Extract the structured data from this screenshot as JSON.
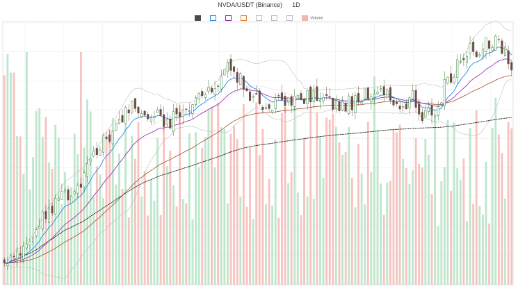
{
  "title": {
    "symbol": "NVDA/USDT (Binance)",
    "interval": "1D"
  },
  "subtitle": "",
  "legend": [
    {
      "key": "price",
      "label": "",
      "color": "#4a4a4a",
      "style": "fill"
    },
    {
      "key": "ema_a",
      "label": "",
      "color": "#1e88e5",
      "style": "box"
    },
    {
      "key": "ema_b",
      "label": "",
      "color": "#8e24aa",
      "style": "box"
    },
    {
      "key": "ema_c",
      "label": "",
      "color": "#e67e22",
      "style": "box"
    },
    {
      "key": "bb_up",
      "label": "",
      "color": "#bdbdbd",
      "style": "box"
    },
    {
      "key": "bb_low",
      "label": "",
      "color": "#bdbdbd",
      "style": "box"
    },
    {
      "key": "bb_mid",
      "label": "",
      "color": "#bdbdbd",
      "style": "box"
    },
    {
      "key": "volume",
      "label": "Volume",
      "color": "#f4b4b0",
      "style": "fill"
    }
  ],
  "chart_data": {
    "type": "line",
    "title": "NVDA/USDT (Binance)  1D",
    "xlabel": "",
    "ylabel": "",
    "n_points": 160,
    "y_range": [
      88,
      190
    ],
    "y_tick_labels": [
      "",
      "",
      "",
      "",
      "",
      "",
      "",
      "",
      "",
      ""
    ],
    "x_tick_labels": [
      "",
      "",
      "",
      "",
      "",
      "",
      "",
      "",
      "",
      "",
      "",
      "",
      ""
    ],
    "grid": true,
    "legend_position": "top-center",
    "colors": {
      "up": "#2e7d32",
      "down": "#6d4c41",
      "ema_fast": "#1e88e5",
      "ema_mid": "#8e24aa",
      "ema_slow": "#a0522d",
      "sma_long": "#000000",
      "band": "#bdbdbd",
      "vol_up": "#bfe6cc",
      "vol_down": "#f6c3bf"
    },
    "price_anchors": [
      [
        0,
        96
      ],
      [
        6,
        101
      ],
      [
        12,
        113
      ],
      [
        18,
        122
      ],
      [
        24,
        128
      ],
      [
        30,
        141
      ],
      [
        36,
        152
      ],
      [
        40,
        157
      ],
      [
        46,
        153
      ],
      [
        52,
        152
      ],
      [
        56,
        156
      ],
      [
        62,
        161
      ],
      [
        66,
        163
      ],
      [
        70,
        175
      ],
      [
        76,
        164
      ],
      [
        82,
        158
      ],
      [
        86,
        158
      ],
      [
        92,
        162
      ],
      [
        100,
        160
      ],
      [
        106,
        157
      ],
      [
        112,
        161
      ],
      [
        118,
        162
      ],
      [
        124,
        158
      ],
      [
        128,
        160
      ],
      [
        132,
        153
      ],
      [
        136,
        159
      ],
      [
        140,
        170
      ],
      [
        146,
        179
      ],
      [
        150,
        181
      ],
      [
        154,
        184
      ],
      [
        158,
        177
      ],
      [
        159,
        175
      ]
    ]
  }
}
